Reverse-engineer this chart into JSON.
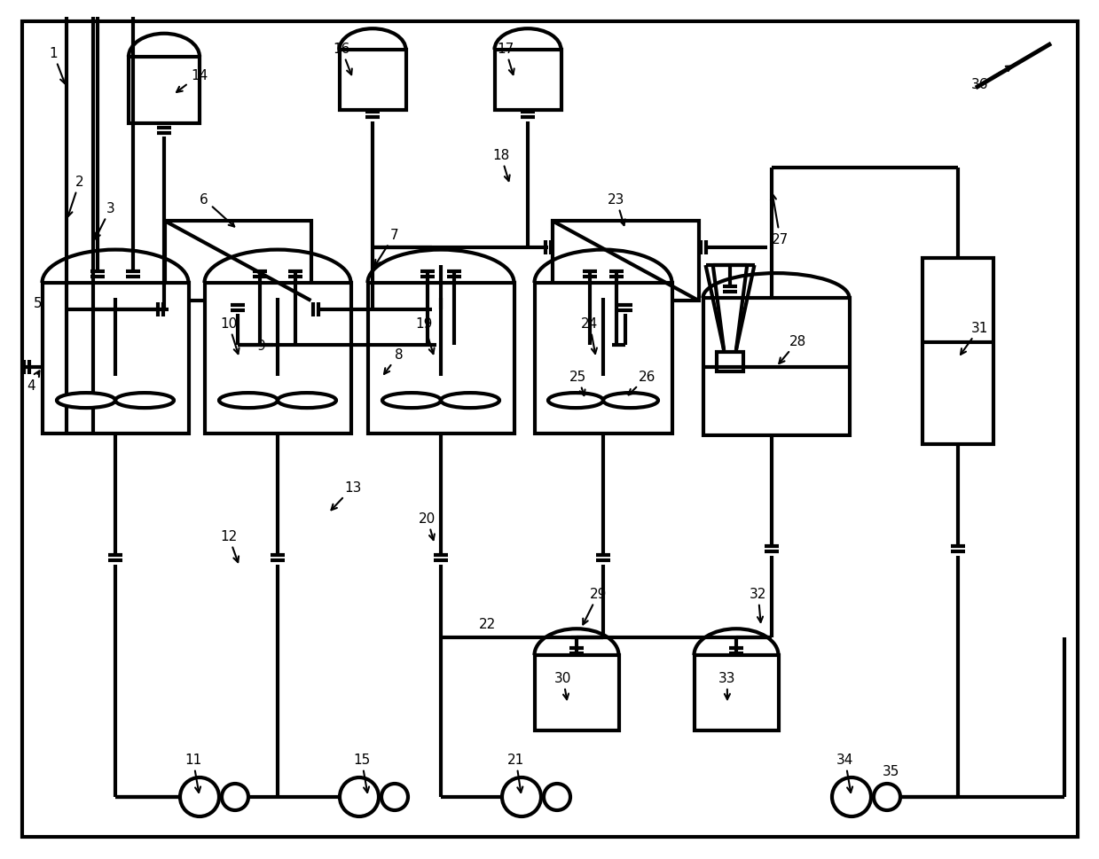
{
  "background_color": "#ffffff",
  "line_color": "#000000",
  "line_width": 3.0,
  "fig_width": 12.39,
  "fig_height": 9.7,
  "dpi": 100
}
